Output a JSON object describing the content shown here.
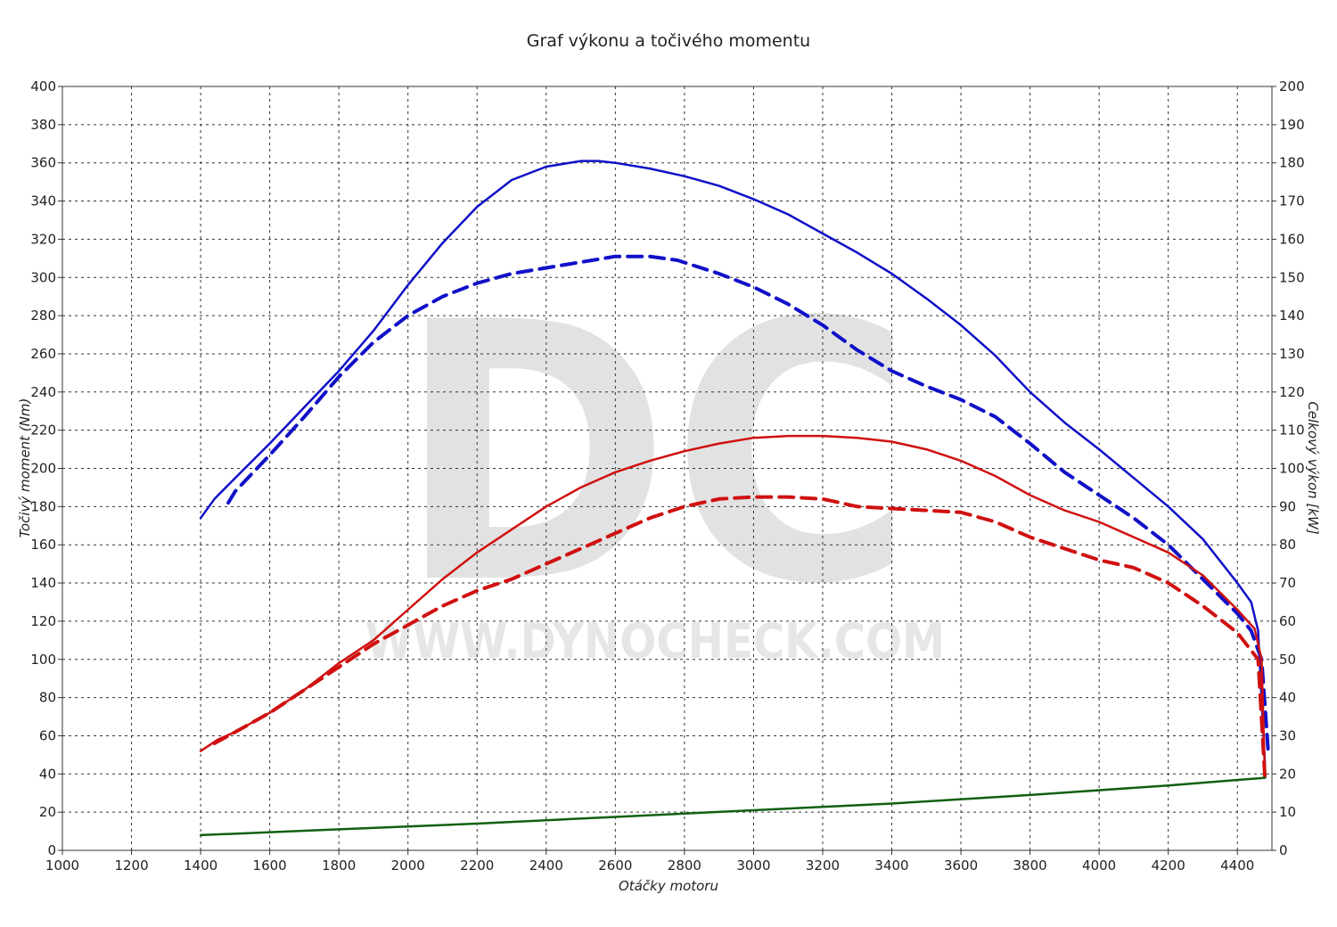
{
  "chart_data": {
    "type": "line",
    "title": "Graf výkonu a točivého momentu",
    "xlabel": "Otáčky motoru",
    "ylabel_left": "Točivý moment (Nm)",
    "ylabel_right": "Celkový výkon [kW]",
    "xlim": [
      1000,
      4500
    ],
    "ylim_left": [
      0,
      400
    ],
    "ylim_right": [
      0,
      200
    ],
    "x_ticks": [
      1000,
      1200,
      1400,
      1600,
      1800,
      2000,
      2200,
      2400,
      2600,
      2800,
      3000,
      3200,
      3400,
      3600,
      3800,
      4000,
      4200,
      4400
    ],
    "y_ticks_left": [
      0,
      20,
      40,
      60,
      80,
      100,
      120,
      140,
      160,
      180,
      200,
      220,
      240,
      260,
      280,
      300,
      320,
      340,
      360,
      380,
      400
    ],
    "y_ticks_right": [
      0,
      10,
      20,
      30,
      40,
      50,
      60,
      70,
      80,
      90,
      100,
      110,
      120,
      130,
      140,
      150,
      160,
      170,
      180,
      190,
      200
    ],
    "grid": true,
    "watermark": {
      "letters": "DC",
      "url": "WWW.DYNOCHECK.COM"
    },
    "series": [
      {
        "style": "solid",
        "color": "#1010c8",
        "axis": "left",
        "x": [
          1400,
          1440,
          1500,
          1600,
          1700,
          1800,
          1900,
          2000,
          2100,
          2200,
          2300,
          2400,
          2500,
          2550,
          2600,
          2700,
          2800,
          2900,
          3000,
          3100,
          3200,
          3300,
          3400,
          3500,
          3600,
          3700,
          3800,
          3900,
          4000,
          4100,
          4200,
          4300,
          4400,
          4440,
          4460,
          4480
        ],
        "y": [
          174,
          184,
          195,
          213,
          232,
          251,
          272,
          296,
          318,
          337,
          351,
          358,
          361,
          361,
          360,
          357,
          353,
          348,
          341,
          333,
          323,
          313,
          302,
          289,
          275,
          259,
          240,
          224,
          210,
          195,
          180,
          163,
          140,
          130,
          115,
          45
        ]
      },
      {
        "style": "dashed",
        "color": "#1010c8",
        "axis": "left",
        "x": [
          1480,
          1500,
          1600,
          1700,
          1800,
          1900,
          2000,
          2100,
          2200,
          2300,
          2400,
          2500,
          2600,
          2700,
          2780,
          2900,
          3000,
          3100,
          3200,
          3300,
          3400,
          3500,
          3600,
          3700,
          3800,
          3900,
          4000,
          4100,
          4200,
          4300,
          4400,
          4440,
          4470,
          4490
        ],
        "y": [
          182,
          188,
          207,
          227,
          248,
          266,
          280,
          290,
          297,
          302,
          305,
          308,
          311,
          311,
          309,
          302,
          295,
          286,
          275,
          262,
          251,
          243,
          236,
          227,
          213,
          198,
          186,
          174,
          160,
          142,
          124,
          115,
          100,
          50
        ]
      },
      {
        "style": "solid",
        "color": "#d01010",
        "axis": "right",
        "x": [
          1400,
          1450,
          1500,
          1600,
          1700,
          1800,
          1900,
          2000,
          2100,
          2200,
          2300,
          2400,
          2500,
          2600,
          2700,
          2800,
          2900,
          3000,
          3100,
          3200,
          3300,
          3400,
          3500,
          3600,
          3700,
          3800,
          3900,
          4000,
          4100,
          4200,
          4300,
          4400,
          4450,
          4470,
          4480
        ],
        "y": [
          26,
          29,
          31,
          36,
          42,
          49,
          55,
          63,
          71,
          78,
          84,
          90,
          95,
          99,
          102,
          104.5,
          106.5,
          108,
          108.5,
          108.5,
          108,
          107,
          105,
          102,
          98,
          93,
          89,
          86,
          82,
          78,
          72,
          63,
          58,
          50,
          19
        ]
      },
      {
        "style": "dashed",
        "color": "#d01010",
        "axis": "right",
        "x": [
          1440,
          1500,
          1600,
          1700,
          1800,
          1900,
          2000,
          2100,
          2200,
          2300,
          2400,
          2500,
          2600,
          2700,
          2800,
          2900,
          3000,
          3100,
          3200,
          3300,
          3400,
          3500,
          3600,
          3700,
          3800,
          3900,
          4000,
          4100,
          4200,
          4300,
          4400,
          4460,
          4480
        ],
        "y": [
          28,
          31,
          36,
          42,
          48,
          54,
          59,
          64,
          68,
          71,
          75,
          79,
          83,
          87,
          90,
          92,
          92.5,
          92.5,
          92,
          90,
          89.5,
          89,
          88.5,
          86,
          82,
          79,
          76,
          74,
          70,
          64,
          57,
          50,
          19
        ]
      },
      {
        "style": "solid",
        "color": "#106010",
        "axis": "left",
        "x": [
          1400,
          1800,
          2200,
          2600,
          3000,
          3400,
          3800,
          4200,
          4480
        ],
        "y": [
          8,
          11,
          14,
          17.5,
          21,
          24.5,
          29,
          34,
          38
        ]
      }
    ]
  }
}
